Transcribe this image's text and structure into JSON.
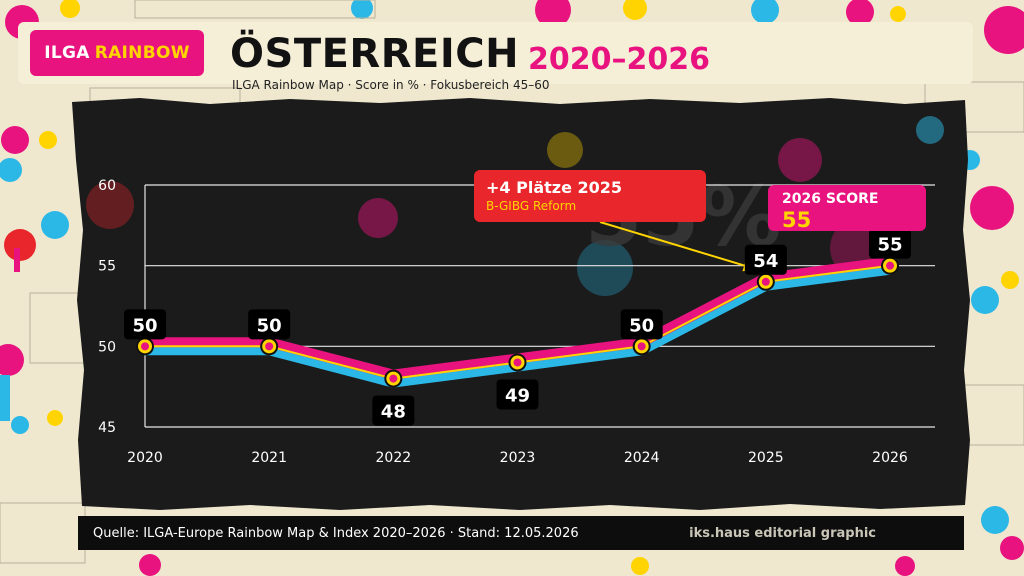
{
  "header": {
    "badge_part1": "ILGA",
    "badge_part2": "RAINBOW",
    "title": "ÖSTERREICH",
    "years": "2020–2026",
    "subtitle": "ILGA Rainbow Map · Score in % · Fokusbereich 45–60"
  },
  "footer": {
    "source": "Quelle: ILGA-Europe Rainbow Map & Index 2020–2026 · Stand: 12.05.2026",
    "brand": "iks.haus editorial graphic"
  },
  "callout": {
    "headline": "+4 Plätze 2025",
    "sub": "B-GIBG Reform"
  },
  "score_box": {
    "label": "2026 SCORE",
    "value": "55"
  },
  "watermark": "55%",
  "chart_data": {
    "type": "line",
    "title": "ÖSTERREICH 2020–2026",
    "subtitle": "ILGA Rainbow Map · Score in % · Fokusbereich 45–60",
    "xlabel": "",
    "ylabel": "",
    "x": [
      "2020",
      "2021",
      "2022",
      "2023",
      "2024",
      "2025",
      "2026"
    ],
    "series": [
      {
        "values": [
          50,
          50,
          48,
          49,
          50,
          54,
          55
        ]
      }
    ],
    "ylim": [
      45,
      60
    ],
    "yticks": [
      "45",
      "50",
      "55",
      "60"
    ],
    "grid": true,
    "colors": {
      "line_pink": "#e8137f",
      "line_blue": "#2bb8e6",
      "line_yellow": "#ffd400",
      "panel": "#1b1b1b"
    }
  }
}
